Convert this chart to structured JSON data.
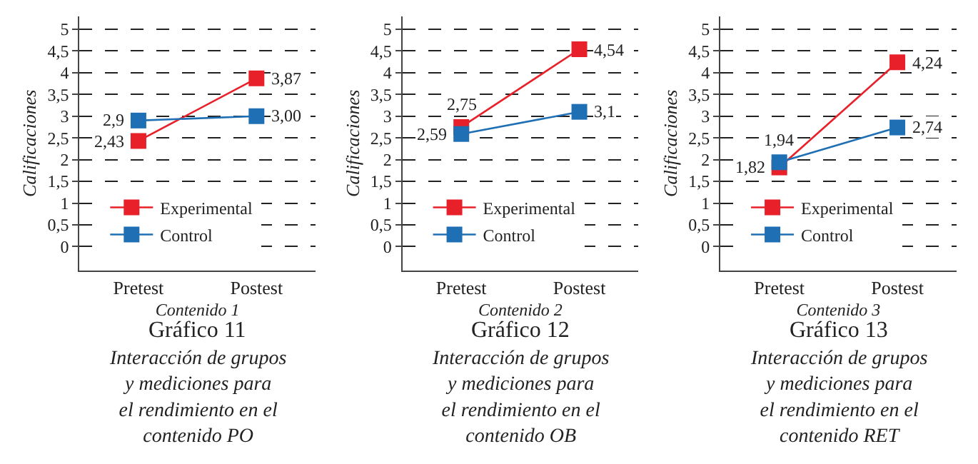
{
  "chart_data": [
    {
      "type": "line",
      "title": "Gráfico 11",
      "subtitle": "Interacción de grupos\ny mediciones para\nel rendimiento en el\ncontenido PO",
      "xlabel": "Contenido 1",
      "ylabel": "Calificaciones",
      "categories": [
        "Pretest",
        "Postest"
      ],
      "series": [
        {
          "name": "Experimental",
          "color": "#e8202a",
          "values": [
            2.43,
            3.87
          ],
          "value_labels": [
            "2,43",
            "3,87"
          ]
        },
        {
          "name": "Control",
          "color": "#1f6fb5",
          "values": [
            2.9,
            3.0
          ],
          "value_labels": [
            "2,9",
            "3,00"
          ]
        }
      ],
      "ylim": [
        -0.55,
        5.3
      ],
      "yticks": [
        0,
        {
          "value": 0.5,
          "label": "0,5"
        },
        1,
        {
          "value": 1.5,
          "label": "1,5"
        },
        2,
        {
          "value": 2.5,
          "label": "2,5"
        },
        3,
        {
          "value": 3.5,
          "label": "3,5"
        },
        4,
        {
          "value": 4.5,
          "label": "4,5"
        },
        5
      ],
      "grid": "y",
      "legend": "bottom left",
      "marker": "square",
      "line_style": "solid"
    },
    {
      "type": "line",
      "title": "Gráfico 12",
      "subtitle": "Interacción de grupos\ny mediciones para\nel rendimiento en el\ncontenido OB",
      "xlabel": "Contenido 2",
      "ylabel": "Calificaciones",
      "categories": [
        "Pretest",
        "Postest"
      ],
      "series": [
        {
          "name": "Experimental",
          "color": "#e8202a",
          "values": [
            2.75,
            4.54
          ],
          "value_labels": [
            "2,75",
            "4,54"
          ]
        },
        {
          "name": "Control",
          "color": "#1f6fb5",
          "values": [
            2.59,
            3.1
          ],
          "value_labels": [
            "2,59",
            "3,1"
          ]
        }
      ],
      "ylim": [
        -0.55,
        5.3
      ],
      "yticks": [
        0,
        {
          "value": 0.5,
          "label": "0,5"
        },
        1,
        {
          "value": 1.5,
          "label": "1,5"
        },
        2,
        {
          "value": 2.5,
          "label": "2,5"
        },
        3,
        {
          "value": 3.5,
          "label": "3,5"
        },
        4,
        {
          "value": 4.5,
          "label": "4,5"
        },
        5
      ],
      "grid": "y",
      "legend": "bottom left",
      "marker": "square",
      "line_style": "solid"
    },
    {
      "type": "line",
      "title": "Gráfico 13",
      "subtitle": "Interacción de grupos\ny mediciones para\nel rendimiento en el\ncontenido RET",
      "xlabel": "Contenido 3",
      "ylabel": "Calificaciones",
      "categories": [
        "Pretest",
        "Postest"
      ],
      "series": [
        {
          "name": "Experimental",
          "color": "#e8202a",
          "values": [
            1.82,
            4.24
          ],
          "value_labels": [
            "1,82",
            "4,24"
          ]
        },
        {
          "name": "Control",
          "color": "#1f6fb5",
          "values": [
            1.94,
            2.74
          ],
          "value_labels": [
            "1,94",
            "2,74"
          ]
        }
      ],
      "ylim": [
        -0.55,
        5.3
      ],
      "yticks": [
        0,
        {
          "value": 0.5,
          "label": "0,5"
        },
        1,
        {
          "value": 1.5,
          "label": "1,5"
        },
        2,
        {
          "value": 2.5,
          "label": "2,5"
        },
        3,
        {
          "value": 3.5,
          "label": "3,5"
        },
        4,
        {
          "value": 4.5,
          "label": "4,5"
        },
        5
      ],
      "grid": "y",
      "legend": "bottom left",
      "marker": "square",
      "line_style": "solid"
    }
  ]
}
